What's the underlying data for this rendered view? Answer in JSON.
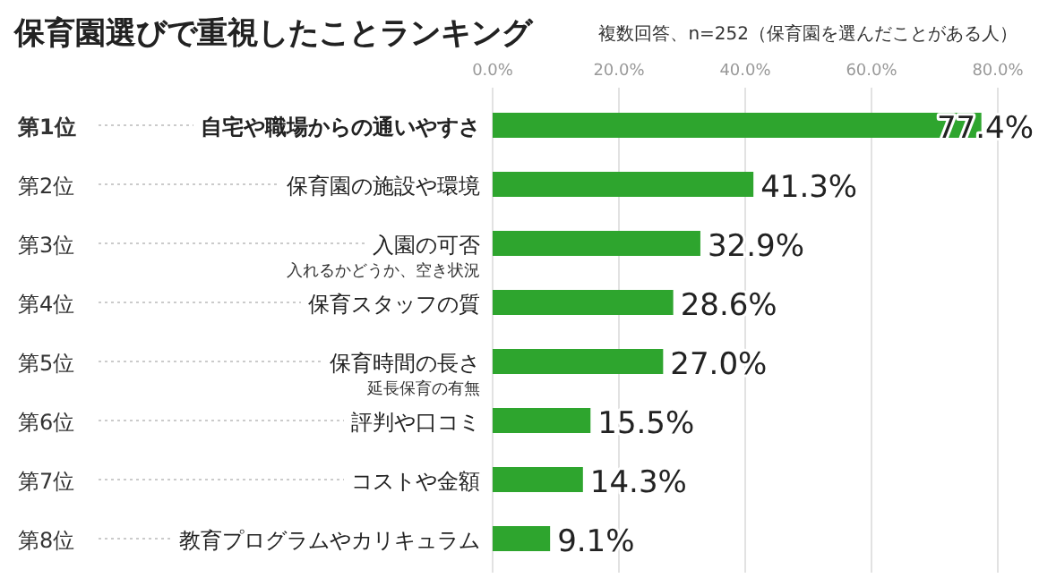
{
  "chart_data": {
    "type": "bar",
    "orientation": "horizontal",
    "title": "保育園選びで重視したことランキング",
    "subtitle": "複数回答、n=252（保育園を選んだことがある人）",
    "categories": [
      "自宅や職場からの通いやすさ",
      "保育園の施設や環境",
      "入園の可否$_{入れるかどうか、空き状況}$",
      "保育スタッフの質",
      "保育時間の長さ$_{延長保育の有無}$",
      "評判や口コミ",
      "コストや金額",
      "教育プログラムやカリキュラム"
    ],
    "values": [
      77.4,
      41.3,
      32.9,
      28.6,
      27.0,
      15.5,
      14.3,
      9.1
    ],
    "value_labels": [
      "77.4%",
      "41.3%",
      "32.9%",
      "28.6%",
      "27.0%",
      "15.5%",
      "14.3%",
      "9.1%"
    ],
    "color": "#2ea52e",
    "xlim": [
      0,
      80
    ],
    "xticks": [
      {
        "value": 0,
        "label": "0.0%"
      },
      {
        "value": 20,
        "label": "20.0%"
      },
      {
        "value": 40,
        "label": "40.0%"
      },
      {
        "value": 60,
        "label": "60.0%"
      },
      {
        "value": 80,
        "label": "80.0%"
      }
    ],
    "grid": "x",
    "annotations": [
      "第1位",
      "第2位",
      "第3位",
      "第4位",
      "第5位",
      "第6位",
      "第7位",
      "第8位"
    ]
  }
}
